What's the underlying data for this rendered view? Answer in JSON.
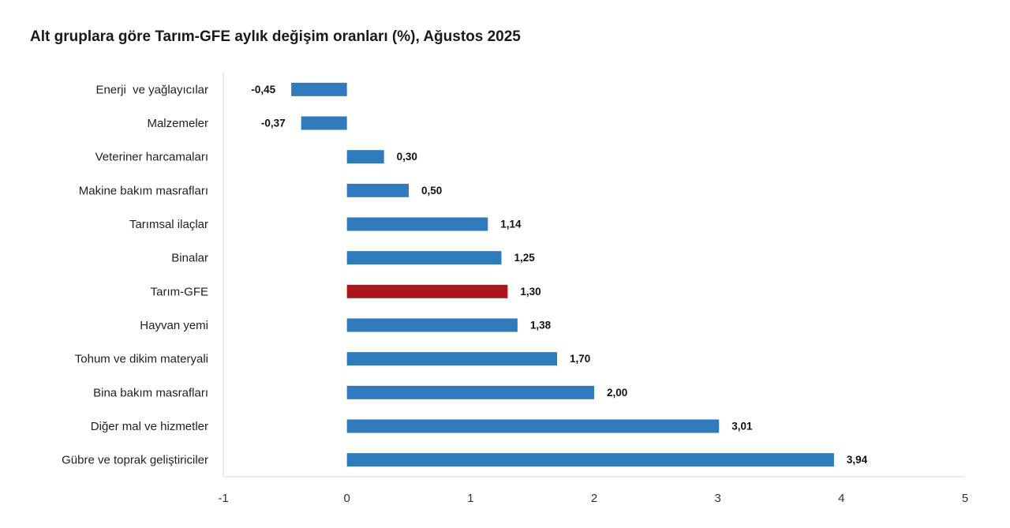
{
  "chart_data": {
    "type": "bar",
    "orientation": "horizontal",
    "title": "Alt gruplara göre Tarım-GFE aylık değişim oranları (%), Ağustos 2025",
    "categories": [
      "Enerji  ve yağlayıcılar",
      "Malzemeler",
      "Veteriner harcamaları",
      "Makine bakım masrafları",
      "Tarımsal ilaçlar",
      "Binalar",
      "Tarım-GFE",
      "Hayvan yemi",
      "Tohum ve dikim materyali",
      "Bina bakım masrafları",
      "Diğer mal ve hizmetler",
      "Gübre ve toprak geliştiriciler"
    ],
    "values": [
      -0.45,
      -0.37,
      0.3,
      0.5,
      1.14,
      1.25,
      1.3,
      1.38,
      1.7,
      2.0,
      3.01,
      3.94
    ],
    "value_labels": [
      "-0,45",
      "-0,37",
      "0,30",
      "0,50",
      "1,14",
      "1,25",
      "1,30",
      "1,38",
      "1,70",
      "2,00",
      "3,01",
      "3,94"
    ],
    "highlight_category": "Tarım-GFE",
    "bar_color": "#2e7bbd",
    "highlight_color": "#ad1519",
    "xlim": [
      -1,
      5
    ],
    "xticks": [
      -1,
      0,
      1,
      2,
      3,
      4,
      5
    ],
    "grid": false,
    "legend": "none"
  }
}
